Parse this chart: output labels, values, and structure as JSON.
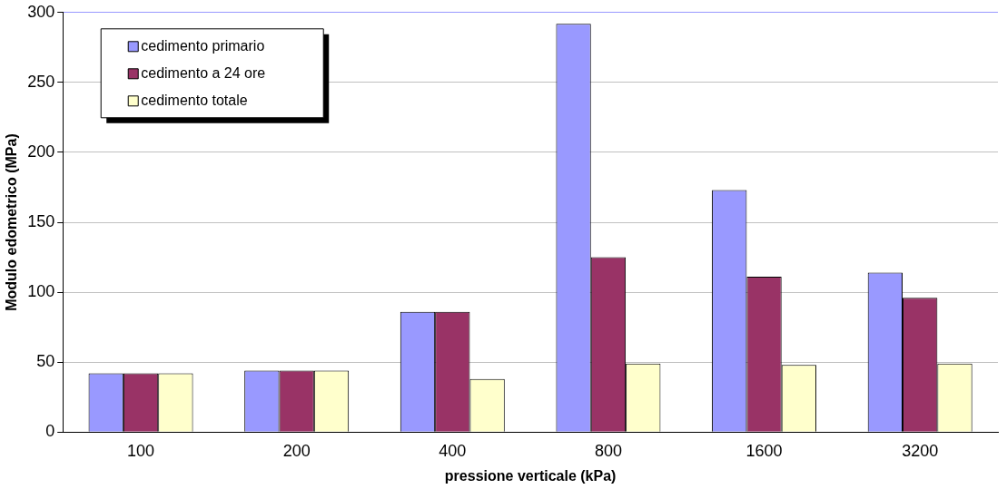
{
  "chart_data": {
    "type": "bar",
    "xlabel": "pressione verticale (kPa)",
    "ylabel": "Modulo edometrico (MPa)",
    "categories": [
      "100",
      "200",
      "400",
      "800",
      "1600",
      "3200"
    ],
    "series": [
      {
        "name": "cedimento primario",
        "color": "#9999ff",
        "values": [
          42,
          44,
          86,
          292,
          173,
          114
        ]
      },
      {
        "name": "cedimento a 24 ore",
        "color": "#993366",
        "values": [
          42,
          44,
          86,
          125,
          111,
          96
        ]
      },
      {
        "name": "cedimento totale",
        "color": "#ffffcc",
        "values": [
          42,
          44,
          38,
          49,
          48,
          49
        ]
      }
    ],
    "ylim": [
      0,
      300
    ],
    "yticks": [
      0,
      50,
      100,
      150,
      200,
      250,
      300
    ],
    "grid": "y",
    "legend": "top left"
  }
}
